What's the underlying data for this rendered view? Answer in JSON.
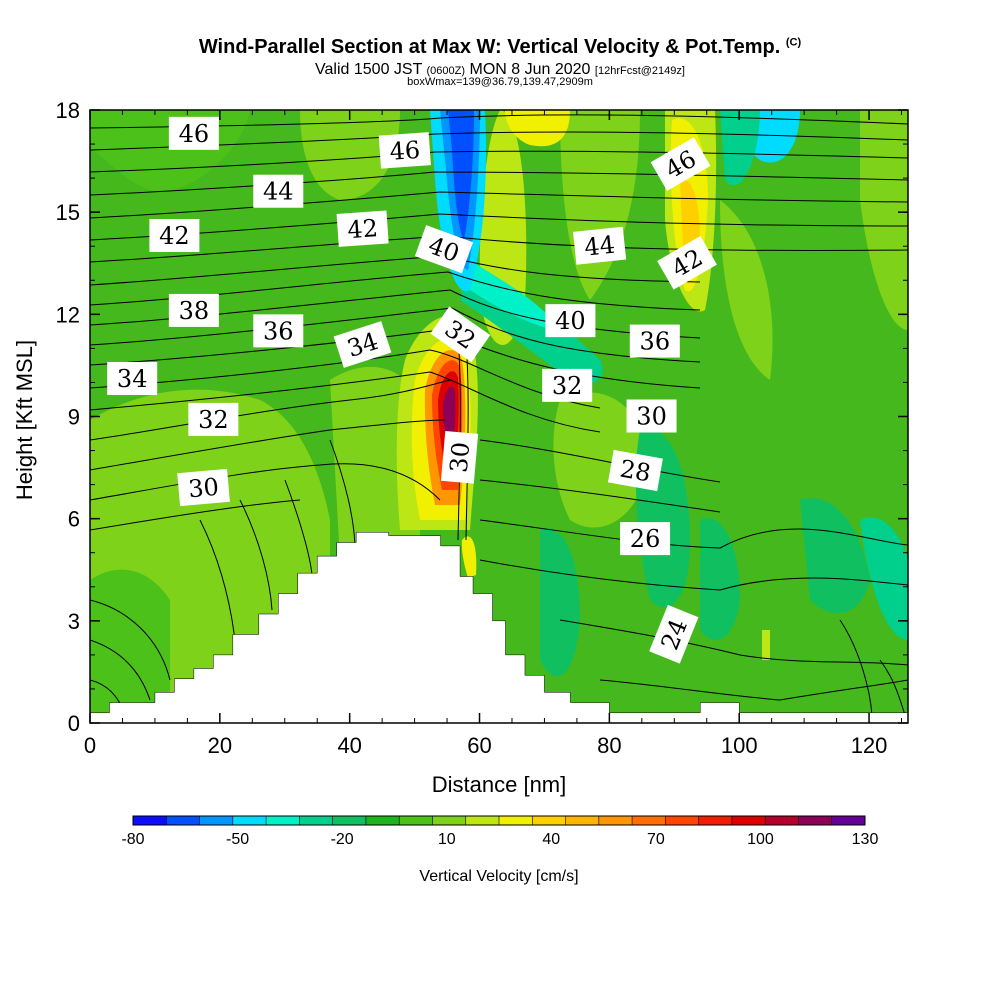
{
  "header": {
    "title": "Wind-Parallel Section at Max W: Vertical Velocity & Pot.Temp.",
    "title_mark": "(C)",
    "valid_prefix": "Valid 1500 JST",
    "valid_utc": "(0600Z)",
    "valid_date": "MON 8 Jun 2020",
    "forecast": "[12hrFcst@2149z]",
    "box_info": "boxWmax=139@36.79,139.47,2909m"
  },
  "chart_data": {
    "type": "heatmap",
    "xlabel": "Distance [nm]",
    "ylabel": "Height [Kft MSL]",
    "xlim": [
      0,
      126
    ],
    "ylim": [
      0,
      18
    ],
    "x_ticks": [
      0,
      20,
      40,
      60,
      80,
      100,
      120
    ],
    "y_ticks": [
      0,
      3,
      6,
      9,
      12,
      15,
      18
    ],
    "terrain": [
      [
        0,
        0.3
      ],
      [
        3,
        0.3
      ],
      [
        3,
        0.6
      ],
      [
        10,
        0.6
      ],
      [
        10,
        0.9
      ],
      [
        13,
        0.9
      ],
      [
        13,
        1.3
      ],
      [
        16,
        1.3
      ],
      [
        16,
        1.6
      ],
      [
        19,
        1.6
      ],
      [
        19,
        2.0
      ],
      [
        22,
        2.0
      ],
      [
        22,
        2.6
      ],
      [
        26,
        2.6
      ],
      [
        26,
        3.2
      ],
      [
        29,
        3.2
      ],
      [
        29,
        3.8
      ],
      [
        32,
        3.8
      ],
      [
        32,
        4.4
      ],
      [
        35,
        4.4
      ],
      [
        35,
        4.9
      ],
      [
        38,
        4.9
      ],
      [
        38,
        5.3
      ],
      [
        41,
        5.3
      ],
      [
        41,
        5.6
      ],
      [
        46,
        5.6
      ],
      [
        46,
        5.5
      ],
      [
        54,
        5.5
      ],
      [
        54,
        5.2
      ],
      [
        57,
        5.2
      ],
      [
        57,
        4.3
      ],
      [
        59,
        4.3
      ],
      [
        59,
        3.8
      ],
      [
        62,
        3.8
      ],
      [
        62,
        3.0
      ],
      [
        64,
        3.0
      ],
      [
        64,
        2.0
      ],
      [
        67,
        2.0
      ],
      [
        67,
        1.4
      ],
      [
        70,
        1.4
      ],
      [
        70,
        0.9
      ],
      [
        74,
        0.9
      ],
      [
        74,
        0.6
      ],
      [
        80,
        0.6
      ],
      [
        80,
        0.3
      ],
      [
        94,
        0.3
      ],
      [
        94,
        0.6
      ],
      [
        100,
        0.6
      ],
      [
        100,
        0.3
      ],
      [
        126,
        0.3
      ]
    ],
    "updraft_core": {
      "x": 55,
      "y_range": [
        6,
        11.5
      ],
      "max_cms": 130
    },
    "downdraft_core": {
      "x": 56,
      "y_range": [
        13,
        18
      ],
      "min_cms": -80
    },
    "contour_labels": [
      {
        "text": "46",
        "x": 16,
        "y": 17.3,
        "rot": 0
      },
      {
        "text": "46",
        "x": 48.5,
        "y": 16.8,
        "rot": -4
      },
      {
        "text": "46",
        "x": 91,
        "y": 16.4,
        "rot": -30
      },
      {
        "text": "44",
        "x": 29,
        "y": 15.6,
        "rot": 0
      },
      {
        "text": "44",
        "x": 78.5,
        "y": 14.0,
        "rot": -6
      },
      {
        "text": "42",
        "x": 13,
        "y": 14.3,
        "rot": 0
      },
      {
        "text": "42",
        "x": 42,
        "y": 14.5,
        "rot": -4
      },
      {
        "text": "42",
        "x": 92,
        "y": 13.5,
        "rot": -30
      },
      {
        "text": "40",
        "x": 54.5,
        "y": 13.9,
        "rot": 20
      },
      {
        "text": "40",
        "x": 74,
        "y": 11.8,
        "rot": 0
      },
      {
        "text": "38",
        "x": 16,
        "y": 12.1,
        "rot": 0
      },
      {
        "text": "36",
        "x": 29,
        "y": 11.5,
        "rot": 0
      },
      {
        "text": "36",
        "x": 87,
        "y": 11.2,
        "rot": 0
      },
      {
        "text": "34",
        "x": 42,
        "y": 11.1,
        "rot": -18
      },
      {
        "text": "34",
        "x": 6.5,
        "y": 10.1,
        "rot": 0
      },
      {
        "text": "32",
        "x": 57,
        "y": 11.4,
        "rot": 35
      },
      {
        "text": "32",
        "x": 73.5,
        "y": 9.9,
        "rot": 0
      },
      {
        "text": "32",
        "x": 19,
        "y": 8.9,
        "rot": 0
      },
      {
        "text": "30",
        "x": 86.5,
        "y": 9.0,
        "rot": 0
      },
      {
        "text": "30",
        "x": 57,
        "y": 7.8,
        "rot": -85
      },
      {
        "text": "30",
        "x": 17.5,
        "y": 6.9,
        "rot": -5
      },
      {
        "text": "28",
        "x": 84,
        "y": 7.4,
        "rot": 10
      },
      {
        "text": "26",
        "x": 85.5,
        "y": 5.4,
        "rot": 0
      },
      {
        "text": "24",
        "x": 90,
        "y": 2.6,
        "rot": -68
      }
    ]
  },
  "colorbar": {
    "title": "Vertical Velocity [cm/s]",
    "tick_labels": [
      "-80",
      "-50",
      "-20",
      "10",
      "40",
      "70",
      "100",
      "130"
    ],
    "colors": [
      "#0c0cff",
      "#0050ff",
      "#0096ff",
      "#00dcff",
      "#00f0c8",
      "#00d08c",
      "#10c060",
      "#1eb41e",
      "#4cc11a",
      "#7ed21a",
      "#bce614",
      "#f0f000",
      "#ffd000",
      "#ffb400",
      "#ff9600",
      "#ff6e00",
      "#ff4600",
      "#f01e00",
      "#dc0000",
      "#b4002d",
      "#8c005a",
      "#640096"
    ]
  }
}
